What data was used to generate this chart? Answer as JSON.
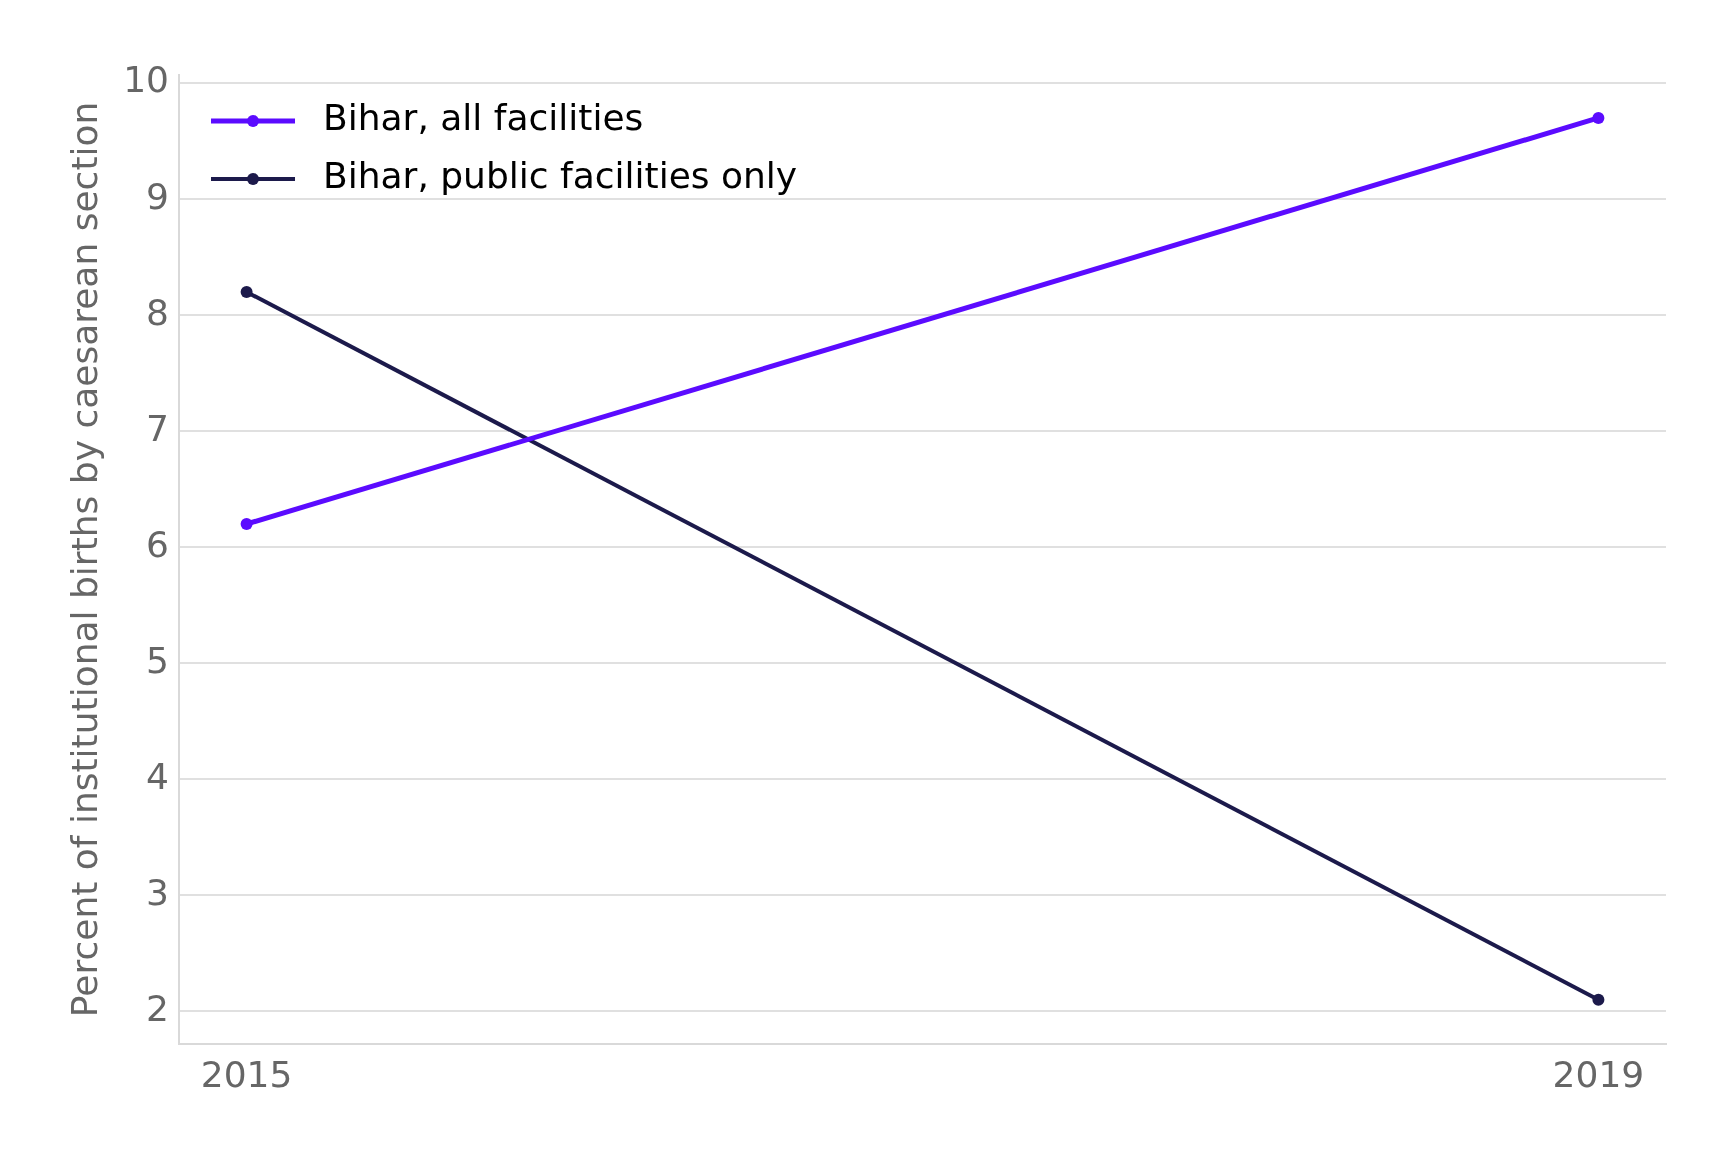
{
  "chart_data": {
    "type": "line",
    "ylabel": "Percent of institutional births by caesarean section",
    "x": [
      2015,
      2019
    ],
    "series": [
      {
        "name": "Bihar, all facilities",
        "color": "#5b0bff",
        "values": [
          6.2,
          9.7
        ]
      },
      {
        "name": "Bihar, public facilities only",
        "color": "#1c1a4b",
        "values": [
          8.2,
          2.1
        ]
      }
    ],
    "xlim": [
      2014.8,
      2019.2
    ],
    "xticks": [
      2015,
      2019
    ],
    "ylim": [
      1.72,
      10.07
    ],
    "yticks": [
      2,
      3,
      4,
      5,
      6,
      7,
      8,
      9,
      10
    ],
    "grid": "y",
    "legend": "top left",
    "marker": "circle",
    "line_style": "solid"
  }
}
